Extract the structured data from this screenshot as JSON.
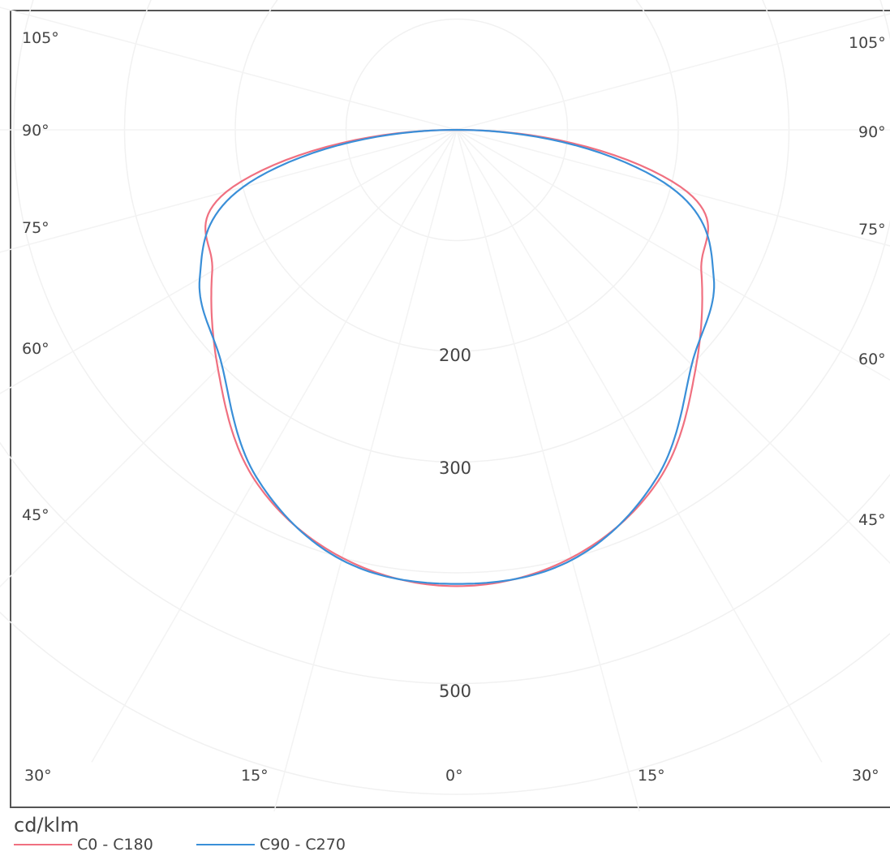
{
  "chart_data": {
    "type": "polar",
    "unit_label": "cd/klm",
    "angle_labels": {
      "left": [
        "105°",
        "90°",
        "75°",
        "60°",
        "45°"
      ],
      "right": [
        "105°",
        "90°",
        "75°",
        "60°",
        "45°"
      ],
      "bottom": [
        "30°",
        "15°",
        "0°",
        "15°",
        "30°"
      ]
    },
    "radial_tick_labels": [
      "200",
      "300",
      "500"
    ],
    "series": [
      {
        "name": "C0 - C180",
        "color": "#f07080",
        "angles_deg": [
          -90,
          -75,
          -60,
          -45,
          -30,
          -15,
          0,
          15,
          30,
          45,
          60,
          75,
          90
        ],
        "values": [
          0,
          215,
          255,
          305,
          365,
          400,
          412,
          400,
          365,
          305,
          255,
          215,
          0
        ]
      },
      {
        "name": "C90 - C270",
        "color": "#3a8fd8",
        "angles_deg": [
          -90,
          -75,
          -60,
          -45,
          -30,
          -15,
          0,
          15,
          30,
          45,
          60,
          75,
          90
        ],
        "values": [
          0,
          200,
          268,
          300,
          362,
          402,
          410,
          402,
          362,
          300,
          268,
          200,
          0
        ]
      }
    ]
  }
}
